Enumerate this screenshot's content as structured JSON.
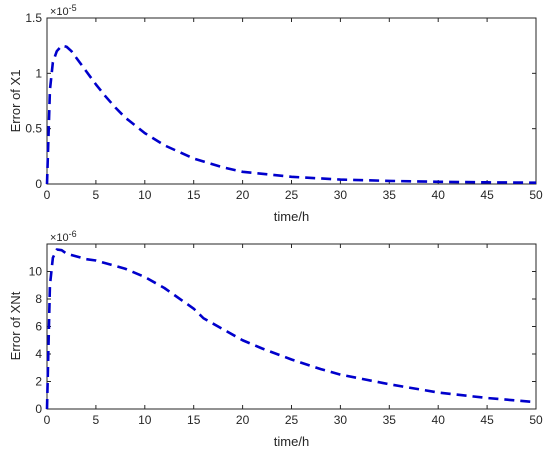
{
  "colors": {
    "series": "#0000cc",
    "axis": "#262626",
    "background": "#ffffff"
  },
  "chart_data": [
    {
      "type": "line",
      "title": "",
      "xlabel": "time/h",
      "ylabel": "Error of X1",
      "y_multiplier": {
        "base": "×10",
        "exponent": "-5"
      },
      "xlim": [
        0,
        50
      ],
      "ylim": [
        0,
        1.5
      ],
      "xticks": [
        "0",
        "5",
        "10",
        "15",
        "20",
        "25",
        "30",
        "35",
        "40",
        "45",
        "50"
      ],
      "yticks": [
        "0",
        "0.5",
        "1",
        "1.5"
      ],
      "grid": false,
      "legend": "none",
      "line_style": "dashed",
      "series": [
        {
          "x": [
            0,
            0.3,
            0.6,
            1.0,
            1.5,
            2.0,
            2.5,
            3.0,
            4.0,
            5.0,
            6.0,
            7.0,
            8.0,
            10.0,
            12.0,
            15.0,
            18.0,
            20.0,
            25.0,
            30.0,
            35.0,
            40.0,
            45.0,
            50.0
          ],
          "y": [
            0,
            0.85,
            1.1,
            1.2,
            1.25,
            1.24,
            1.2,
            1.14,
            1.02,
            0.9,
            0.79,
            0.69,
            0.6,
            0.46,
            0.35,
            0.23,
            0.15,
            0.11,
            0.065,
            0.04,
            0.028,
            0.02,
            0.015,
            0.012
          ]
        }
      ]
    },
    {
      "type": "line",
      "title": "",
      "xlabel": "time/h",
      "ylabel": "Error of XNt",
      "y_multiplier": {
        "base": "×10",
        "exponent": "-6"
      },
      "xlim": [
        0,
        50
      ],
      "ylim": [
        0,
        12
      ],
      "xticks": [
        "0",
        "5",
        "10",
        "15",
        "20",
        "25",
        "30",
        "35",
        "40",
        "45",
        "50"
      ],
      "yticks": [
        "0",
        "2",
        "4",
        "6",
        "8",
        "10"
      ],
      "grid": false,
      "legend": "none",
      "line_style": "dashed",
      "series": [
        {
          "x": [
            0,
            0.3,
            0.6,
            1.0,
            1.5,
            2.0,
            3.0,
            4.0,
            5.0,
            6.0,
            7.0,
            8.0,
            10.0,
            12.0,
            14.0,
            15.0,
            16.0,
            18.0,
            20.0,
            22.0,
            25.0,
            28.0,
            30.0,
            35.0,
            40.0,
            45.0,
            50.0
          ],
          "y": [
            0,
            9.0,
            11.0,
            11.6,
            11.55,
            11.3,
            11.1,
            10.9,
            10.8,
            10.6,
            10.4,
            10.2,
            9.6,
            8.8,
            7.8,
            7.3,
            6.6,
            5.8,
            5.0,
            4.4,
            3.6,
            2.9,
            2.5,
            1.8,
            1.2,
            0.8,
            0.5
          ]
        }
      ]
    }
  ]
}
